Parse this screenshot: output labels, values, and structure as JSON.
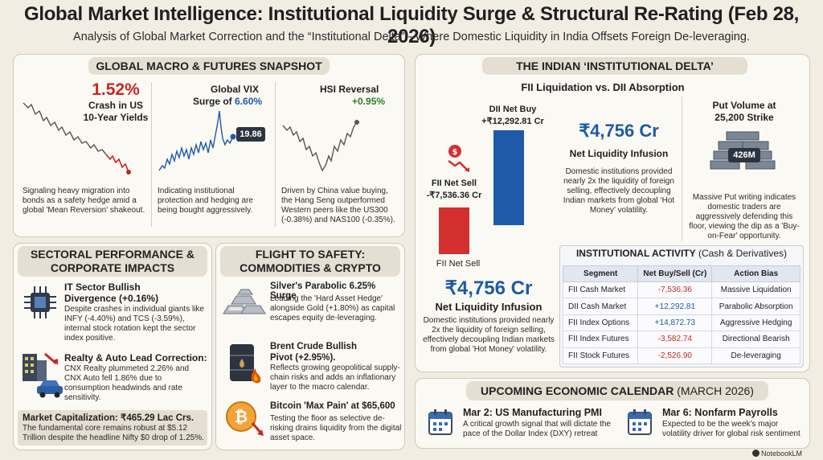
{
  "header": {
    "title": "Global Market Intelligence: Institutional Liquidity Surge & Structural Re-Rating (Feb 28, 2026)",
    "subtitle": "Analysis of Global Market Correction and the “Institutional Delta” - Where Domestic Liquidity in India Offsets Foreign De-leveraging."
  },
  "macro": {
    "header": "GLOBAL MACRO & FUTURES SNAPSHOT",
    "us10y": {
      "value": "1.52%",
      "label_line1": "Crash in US",
      "label_line2": "10-Year Yields",
      "desc": "Signaling heavy migration into bonds as a safety hedge amid a global 'Mean Reversion' shakeout."
    },
    "vix": {
      "label_line1": "Global VIX",
      "label_prefix": "Surge of ",
      "value": "6.60%",
      "badge": "19.86",
      "desc": "Indicating institutional protection and hedging are being bought aggressively."
    },
    "hsi": {
      "label": "HSI Reversal",
      "value": "+0.95%",
      "desc": "Driven by China value buying, the Hang Seng outperformed Western peers like the US300 (-0.38%) and NAS100 (-0.35%)."
    }
  },
  "sectoral": {
    "header_line1": "SECTORAL PERFORMANCE &",
    "header_line2": "CORPORATE IMPACTS",
    "it": {
      "title_line1": "IT Sector Bullish",
      "title_line2": "Divergence (+0.16%)",
      "desc": "Despite crashes in individual giants like INFY (-4.40%) and TCS (-3.59%), internal stock rotation kept the sector index positive."
    },
    "realty": {
      "title": "Realty & Auto Lead Correction:",
      "desc": "CNX Realty plummeted 2.26% and CNX Auto fell 1.86% due to consumption headwinds and rate sensitivity."
    },
    "mcap": {
      "title": "Market Capitalization: ₹465.29 Lac Crs.",
      "desc": "The fundamental core remains robust at $5.12 Trillion despite the headline Nifty $0 drop of 1.25%."
    }
  },
  "flight": {
    "header_line1": "FLIGHT TO SAFETY:",
    "header_line2": "COMMODITIES & CRYPTO",
    "silver": {
      "title": "Silver's Parabolic 6.25% Surge",
      "desc": "Leading the 'Hard Asset Hedge' alongside Gold (+1.80%) as capital escapes equity de-leveraging."
    },
    "crude": {
      "title_bold": "Brent Crude Bullish Pivot (+2.95%).",
      "desc": "Reflects growing geopolitical supply-chain risks and adds an inflationary layer to the macro calendar."
    },
    "btc": {
      "title": "Bitcoin 'Max Pain' at $65,600",
      "desc": "Testing the floor as selective de-risking drains liquidity from the digital asset space."
    }
  },
  "delta": {
    "header": "THE INDIAN ‘INSTITUTIONAL DELTA’",
    "subheader": "FII Liquidation vs. DII Absorption",
    "dii_label": "DII Net Buy",
    "dii_value": "+₹12,292.81 Cr",
    "fii_label": "FII Net Sell",
    "fii_value": "-₹7,536.36 Cr",
    "fii_bottom_label": "FII Net Sell",
    "big_value": "₹4,756 Cr",
    "big_label": "Net Liquidity Infusion",
    "big_desc": "Domestic institutions provided nearly 2x the liquidity of foreign selling, effectively decoupling Indian markets from global 'Hot Money' volatility.",
    "mid_value": "₹4,756 Cr",
    "mid_label": "Net Liquidity Infusion",
    "mid_desc": "Domestic institutions provided nearly 2x the liquidity of foreign selling, effectively decoupling Indian markets from global ‘Hot Money’ volatility.",
    "put": {
      "title_line1": "Put Volume at",
      "title_line2": "25,200 Strike",
      "badge": "426M",
      "desc": "Massive Put writing indicates domestic traders are aggressively defending this floor, viewing the dip as a 'Buy-on-Fear' opportunity."
    },
    "colors": {
      "fii": "#d32f2f",
      "dii": "#1e5aa8"
    }
  },
  "activity": {
    "title_bold": "INSTITUTIONAL ACTIVITY",
    "title_rest": " (Cash & Derivatives)",
    "columns": [
      "Segment",
      "Net Buy/Sell (Cr)",
      "Action Bias"
    ],
    "rows": [
      [
        "FII Cash Market",
        "-7,536.36",
        "Massive Liquidation"
      ],
      [
        "DII Cash Market",
        "+12,292.81",
        "Parabolic Absorption"
      ],
      [
        "FII Index Options",
        "+14,872.73",
        "Aggressive Hedging"
      ],
      [
        "FII Index Futures",
        "-3,582.74",
        "Directional Bearish"
      ],
      [
        "FII Stock Futures",
        "-2,526.90",
        "De-leveraging"
      ]
    ]
  },
  "calendar": {
    "header_bold": "UPCOMING ECONOMIC CALENDAR",
    "header_rest": " (MARCH 2026)",
    "events": [
      {
        "title": "Mar 2: US Manufacturing PMI",
        "desc": "A critical growth signal that will dictate the pace of the Dollar Index (DXY) retreat"
      },
      {
        "title": "Mar 6: Nonfarm Payrolls",
        "desc": "Expected to be the week's major volatility driver for global risk sentiment"
      }
    ]
  },
  "watermark": "NotebookLM"
}
